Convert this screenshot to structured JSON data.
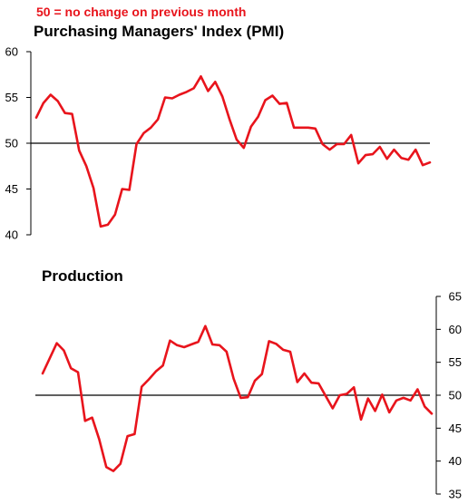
{
  "note": "50 =  no change on previous month",
  "colors": {
    "series": "#e8141c",
    "axis": "#000000",
    "note": "#e8141c"
  },
  "chart_data": [
    {
      "type": "line",
      "title": "Purchasing Managers' Index (PMI)",
      "ylim": [
        40,
        60
      ],
      "yticks": [
        "40",
        "45",
        "50",
        "55",
        "60"
      ],
      "y_axis_side": "left",
      "reference_line": 50,
      "series": [
        {
          "values": [
            52.8,
            54.4,
            55.3,
            54.6,
            53.3,
            53.2,
            49.2,
            47.5,
            45.1,
            40.9,
            41.1,
            42.2,
            45.0,
            44.9,
            49.9,
            51.1,
            51.7,
            52.6,
            55.0,
            54.9,
            55.3,
            55.6,
            56.0,
            57.3,
            55.7,
            56.7,
            55.1,
            52.6,
            50.4,
            49.5,
            51.8,
            52.9,
            54.7,
            55.2,
            54.3,
            54.4,
            51.7,
            51.7,
            51.7,
            51.6,
            49.9,
            49.3,
            49.9,
            49.9,
            50.9,
            47.8,
            48.7,
            48.8,
            49.6,
            48.3,
            49.3,
            48.4,
            48.2,
            49.3,
            47.6,
            47.9
          ]
        }
      ]
    },
    {
      "type": "line",
      "title": "Production",
      "ylim": [
        35,
        65
      ],
      "yticks": [
        "35",
        "40",
        "45",
        "50",
        "55",
        "60",
        "65"
      ],
      "y_axis_side": "right",
      "reference_line": 50,
      "series": [
        {
          "values": [
            53.3,
            55.6,
            57.9,
            56.8,
            54.1,
            53.5,
            46.1,
            46.6,
            43.3,
            39.1,
            38.5,
            39.6,
            43.8,
            44.1,
            51.3,
            52.4,
            53.6,
            54.5,
            58.3,
            57.6,
            57.3,
            57.7,
            58.1,
            60.5,
            57.7,
            57.6,
            56.6,
            52.5,
            49.6,
            49.7,
            52.2,
            53.2,
            58.2,
            57.8,
            56.9,
            56.6,
            52.0,
            53.3,
            51.9,
            51.8,
            49.9,
            48.0,
            50.0,
            50.2,
            51.2,
            46.3,
            49.5,
            47.6,
            50.1,
            47.4,
            49.2,
            49.6,
            49.2,
            50.9,
            48.3,
            47.2
          ]
        }
      ]
    }
  ]
}
